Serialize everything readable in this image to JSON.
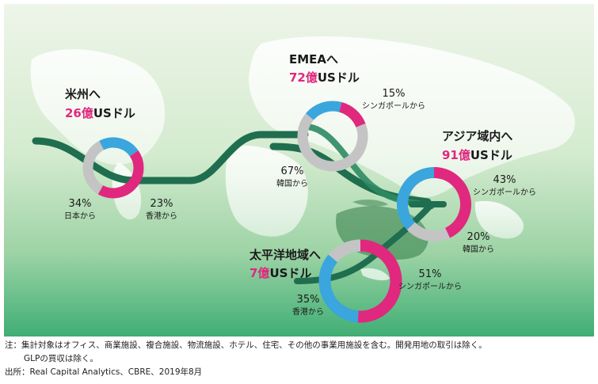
{
  "chart_data": {
    "type": "pie",
    "donut": true,
    "colors": {
      "Singapore": "#e0287e",
      "Hong Kong": "#3aa6dd",
      "Japan": "#c4c4c4",
      "Korea": "#c4c4c4",
      "highlight": "#e0287e",
      "pipeline": "#1f6e4f"
    },
    "regions": [
      {
        "id": "americas",
        "title": "米州へ",
        "amount": "26億",
        "unit": "USドル",
        "slices": [
          {
            "source": "Japan",
            "value": 34,
            "label": "34%",
            "sublabel": "日本から"
          },
          {
            "source": "Hong Kong",
            "value": 23,
            "label": "23%",
            "sublabel": "香港から"
          },
          {
            "source": "Singapore",
            "value": 43,
            "label": "",
            "sublabel": ""
          }
        ]
      },
      {
        "id": "emea",
        "title": "EMEAへ",
        "amount": "72億",
        "unit": "USドル",
        "slices": [
          {
            "source": "Singapore",
            "value": 15,
            "label": "15%",
            "sublabel": "シンガポールから"
          },
          {
            "source": "Korea",
            "value": 67,
            "label": "67%",
            "sublabel": "韓国から"
          },
          {
            "source": "Hong Kong",
            "value": 18,
            "label": "",
            "sublabel": ""
          }
        ]
      },
      {
        "id": "asia",
        "title": "アジア域内へ",
        "amount": "91億",
        "unit": "USドル",
        "slices": [
          {
            "source": "Singapore",
            "value": 43,
            "label": "43%",
            "sublabel": "シンガポールから"
          },
          {
            "source": "Korea",
            "value": 20,
            "label": "20%",
            "sublabel": "韓国から"
          },
          {
            "source": "Hong Kong",
            "value": 37,
            "label": "",
            "sublabel": ""
          }
        ]
      },
      {
        "id": "pacific",
        "title": "太平洋地域へ",
        "amount": "7億",
        "unit": "USドル",
        "slices": [
          {
            "source": "Singapore",
            "value": 51,
            "label": "51%",
            "sublabel": "シンガポールから"
          },
          {
            "source": "Hong Kong",
            "value": 35,
            "label": "35%",
            "sublabel": "香港から"
          },
          {
            "source": "Japan",
            "value": 14,
            "label": "",
            "sublabel": ""
          }
        ]
      }
    ]
  },
  "notes": {
    "note_line1": "注：集計対象はオフィス、商業施設、複合施設、物流施設、ホテル、住宅、その他の事業用施設を含む。開発用地の取引は除く。",
    "note_line2": "GLPの買収は除く。",
    "source_line": "出所：Real Capital Analytics、CBRE、2019年8月"
  }
}
